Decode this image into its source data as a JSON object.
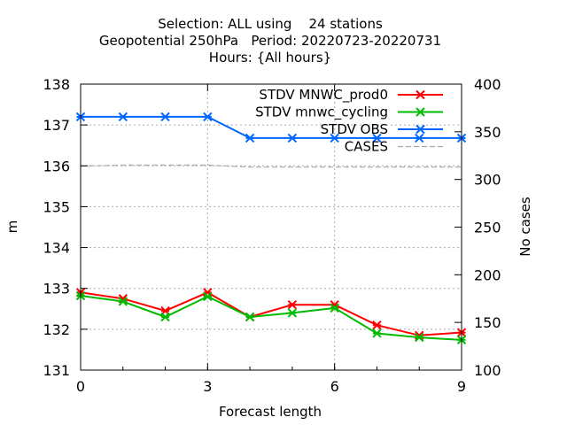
{
  "chart_data": {
    "type": "line",
    "title_lines": [
      "Selection: ALL using    24 stations",
      "Geopotential 250hPa   Period: 20220723-20220731",
      "Hours: {All hours}"
    ],
    "xlabel": "Forecast length",
    "ylabel": "m",
    "y2label": "No cases",
    "xlim": [
      0,
      9
    ],
    "ylim": [
      131,
      138
    ],
    "y2lim": [
      100,
      400
    ],
    "xticks": [
      "0",
      "3",
      "6",
      "9"
    ],
    "yticks": [
      "131",
      "132",
      "133",
      "134",
      "135",
      "136",
      "137",
      "138"
    ],
    "y2ticks": [
      "100",
      "150",
      "200",
      "250",
      "300",
      "350",
      "400"
    ],
    "grid": true,
    "legend_position": "top-right",
    "x": [
      0,
      1,
      2,
      3,
      4,
      5,
      6,
      7,
      8,
      9
    ],
    "series": [
      {
        "name": "STDV MNWC_prod0",
        "color": "#ff0000",
        "axis": "y",
        "values": [
          132.9,
          132.75,
          132.45,
          132.9,
          132.3,
          132.6,
          132.6,
          132.1,
          131.85,
          131.92
        ]
      },
      {
        "name": "STDV mnwc_cycling",
        "color": "#00bb00",
        "axis": "y",
        "values": [
          132.82,
          132.68,
          132.3,
          132.8,
          132.3,
          132.4,
          132.52,
          131.9,
          131.8,
          131.74
        ]
      },
      {
        "name": "STDV OBS",
        "color": "#0066ff",
        "axis": "y",
        "values": [
          137.2,
          137.2,
          137.2,
          137.2,
          136.68,
          136.68,
          136.68,
          136.68,
          136.68,
          136.68
        ]
      },
      {
        "name": "CASES",
        "color": "#aaaaaa",
        "axis": "y2",
        "style": "dashed",
        "values": [
          314,
          315,
          315,
          315,
          313,
          313,
          313,
          313,
          313,
          313
        ]
      }
    ]
  }
}
